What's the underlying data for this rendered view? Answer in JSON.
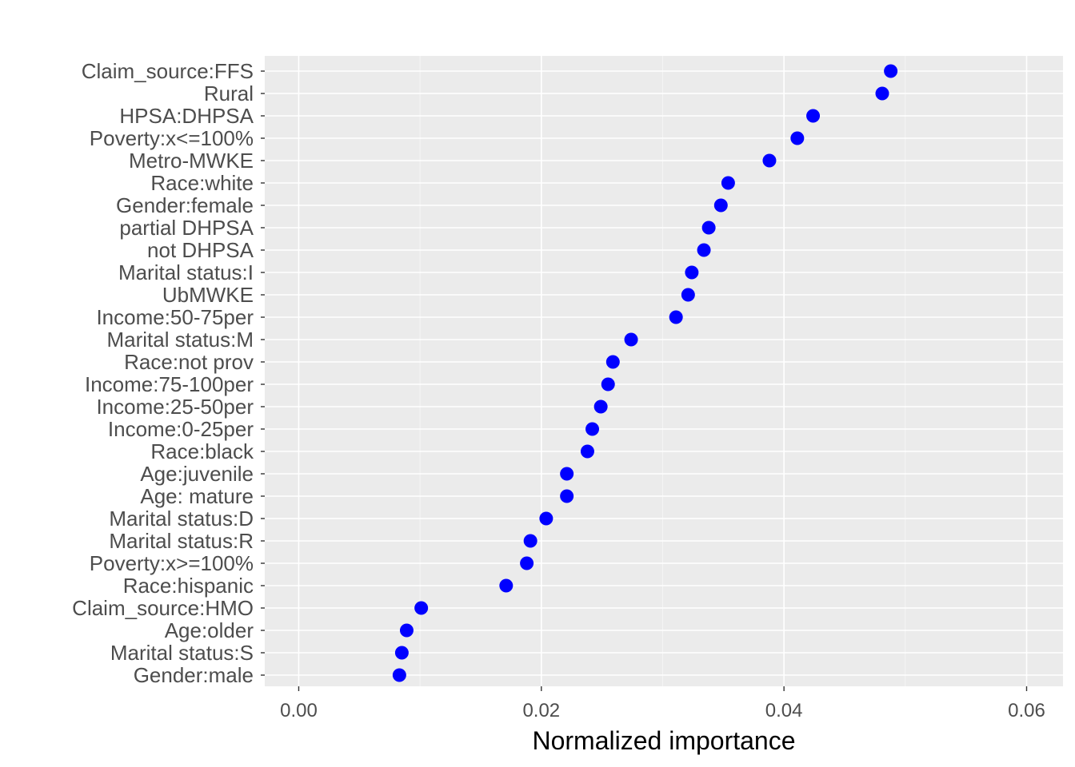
{
  "colors": {
    "panel_background": "#ebebeb",
    "grid_major": "#ffffff",
    "grid_minor": "#f5f5f5",
    "point": "#0000ff",
    "tick_label": "#4d4d4d",
    "axis_title": "#000000"
  },
  "chart_data": {
    "type": "scatter",
    "title": "",
    "xlabel": "Normalized importance",
    "ylabel": "",
    "xlim": [
      -0.0028,
      0.063
    ],
    "x_ticks": [
      0.0,
      0.02,
      0.04,
      0.06
    ],
    "x_tick_labels": [
      "0.00",
      "0.02",
      "0.04",
      "0.06"
    ],
    "grid": true,
    "legend": "none",
    "categories": [
      "Claim_source:FFS",
      "Rural",
      "HPSA:DHPSA",
      "Poverty:x<=100%",
      "Metro-MWKE",
      "Race:white",
      "Gender:female",
      "partial DHPSA",
      "not DHPSA",
      "Marital status:I",
      "UbMWKE",
      "Income:50-75per",
      "Marital status:M",
      "Race:not prov",
      "Income:75-100per",
      "Income:25-50per",
      "Income:0-25per",
      "Race:black",
      "Age:juvenile",
      "Age: mature",
      "Marital status:D",
      "Marital status:R",
      "Poverty:x>=100%",
      "Race:hispanic",
      "Claim_source:HMO",
      "Age:older",
      "Marital status:S",
      "Gender:male"
    ],
    "values": [
      0.0488,
      0.0481,
      0.0424,
      0.0411,
      0.0388,
      0.0354,
      0.0348,
      0.0338,
      0.0334,
      0.0324,
      0.0321,
      0.0311,
      0.0274,
      0.0259,
      0.0255,
      0.0249,
      0.0242,
      0.0238,
      0.0221,
      0.0221,
      0.0204,
      0.0191,
      0.0188,
      0.0171,
      0.0101,
      0.0089,
      0.0085,
      0.0083
    ]
  }
}
